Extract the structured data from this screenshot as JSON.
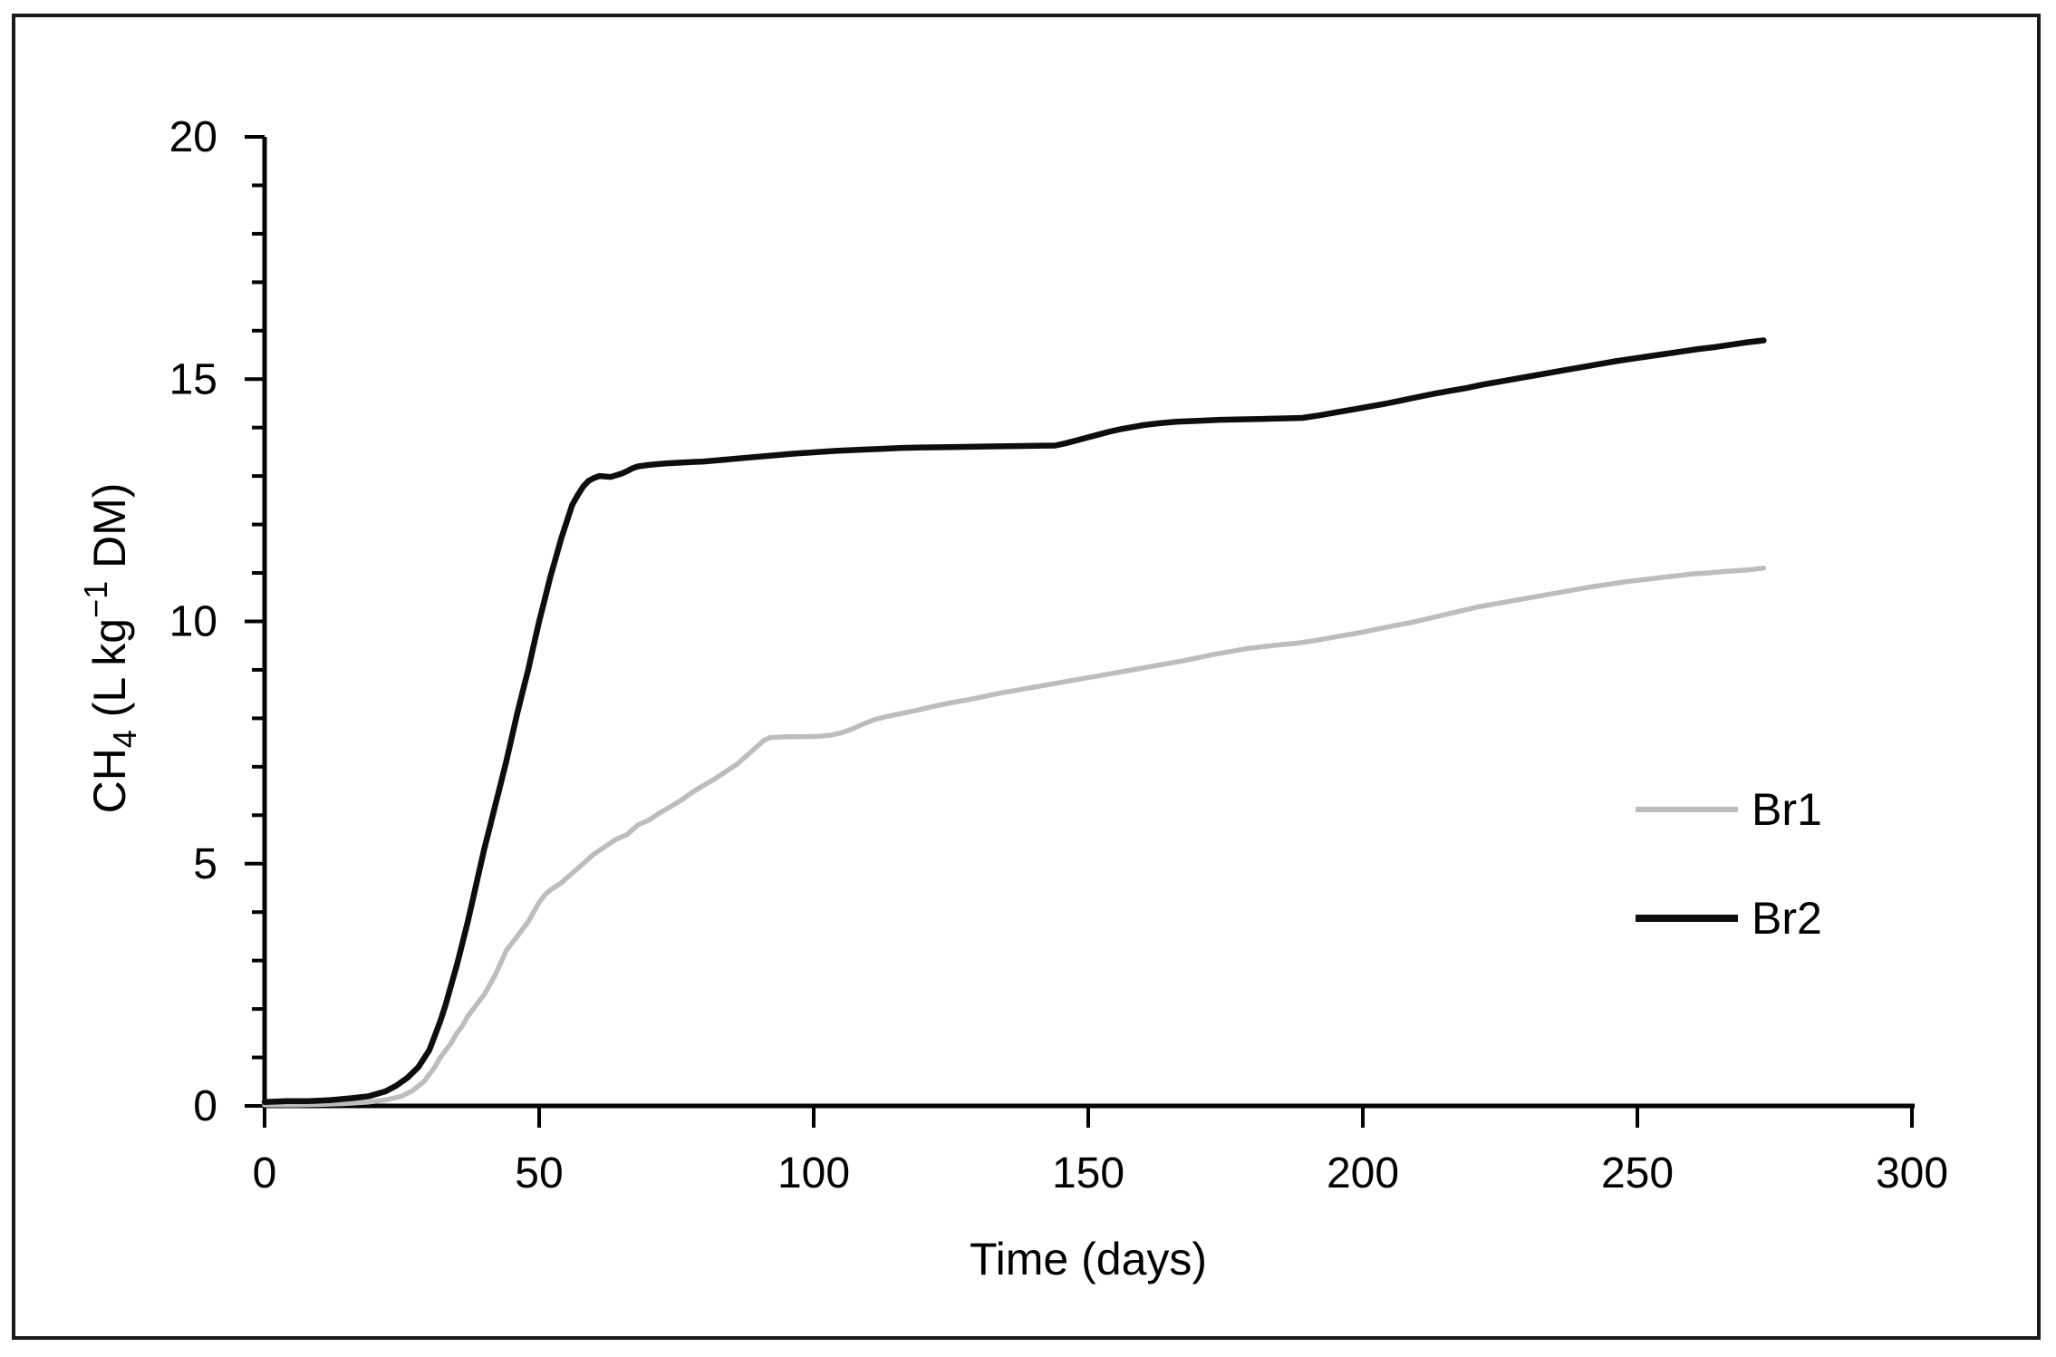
{
  "chart_data": {
    "type": "line",
    "title": "",
    "xlabel": "Time (days)",
    "ylabel": "CH4 (L kg-1 DM)",
    "ylabel_parts": {
      "base": "CH",
      "sub": "4",
      "mid": " (L kg",
      "sup": "−1",
      "end": " DM)"
    },
    "xlim": [
      0,
      300
    ],
    "ylim": [
      0,
      20
    ],
    "x_tick_labels": [
      "0",
      "50",
      "100",
      "150",
      "200",
      "250",
      "300"
    ],
    "y_tick_labels": [
      "0",
      "5",
      "10",
      "15",
      "20"
    ],
    "y_minor_tick_step": 1,
    "grid": "off",
    "legend_position": "right-middle",
    "colors": {
      "background": "#ffffff",
      "border": "#1a1a1a",
      "axis": "#000000"
    },
    "series": [
      {
        "name": "Br1",
        "color": "#bdbdbd",
        "stroke_width": 5.5,
        "points": [
          [
            0,
            0.02
          ],
          [
            5,
            0.02
          ],
          [
            10,
            0.03
          ],
          [
            15,
            0.05
          ],
          [
            19,
            0.08
          ],
          [
            22,
            0.12
          ],
          [
            25,
            0.2
          ],
          [
            27,
            0.32
          ],
          [
            29,
            0.5
          ],
          [
            31,
            0.8
          ],
          [
            32,
            1.0
          ],
          [
            33,
            1.15
          ],
          [
            34,
            1.3
          ],
          [
            35,
            1.5
          ],
          [
            36,
            1.65
          ],
          [
            37,
            1.85
          ],
          [
            38,
            2.0
          ],
          [
            39,
            2.15
          ],
          [
            40,
            2.3
          ],
          [
            41,
            2.5
          ],
          [
            42,
            2.7
          ],
          [
            43,
            2.95
          ],
          [
            44,
            3.2
          ],
          [
            45,
            3.35
          ],
          [
            46,
            3.5
          ],
          [
            47,
            3.65
          ],
          [
            48,
            3.8
          ],
          [
            49,
            4.0
          ],
          [
            50,
            4.2
          ],
          [
            51,
            4.35
          ],
          [
            52,
            4.45
          ],
          [
            54,
            4.6
          ],
          [
            56,
            4.8
          ],
          [
            58,
            5.0
          ],
          [
            60,
            5.2
          ],
          [
            62,
            5.35
          ],
          [
            64,
            5.5
          ],
          [
            66,
            5.6
          ],
          [
            68,
            5.8
          ],
          [
            70,
            5.9
          ],
          [
            72,
            6.05
          ],
          [
            74,
            6.18
          ],
          [
            76,
            6.32
          ],
          [
            78,
            6.48
          ],
          [
            80,
            6.62
          ],
          [
            82,
            6.75
          ],
          [
            84,
            6.9
          ],
          [
            86,
            7.05
          ],
          [
            88,
            7.25
          ],
          [
            90,
            7.45
          ],
          [
            91,
            7.55
          ],
          [
            92,
            7.6
          ],
          [
            95,
            7.62
          ],
          [
            98,
            7.62
          ],
          [
            101,
            7.63
          ],
          [
            103,
            7.65
          ],
          [
            105,
            7.7
          ],
          [
            107,
            7.78
          ],
          [
            109,
            7.88
          ],
          [
            111,
            7.97
          ],
          [
            113,
            8.03
          ],
          [
            116,
            8.1
          ],
          [
            119,
            8.17
          ],
          [
            122,
            8.25
          ],
          [
            125,
            8.32
          ],
          [
            128,
            8.38
          ],
          [
            131,
            8.45
          ],
          [
            134,
            8.52
          ],
          [
            137,
            8.58
          ],
          [
            140,
            8.64
          ],
          [
            143,
            8.7
          ],
          [
            146,
            8.76
          ],
          [
            149,
            8.82
          ],
          [
            152,
            8.88
          ],
          [
            155,
            8.94
          ],
          [
            158,
            9.0
          ],
          [
            161,
            9.06
          ],
          [
            164,
            9.12
          ],
          [
            167,
            9.18
          ],
          [
            170,
            9.25
          ],
          [
            173,
            9.32
          ],
          [
            176,
            9.38
          ],
          [
            179,
            9.44
          ],
          [
            182,
            9.48
          ],
          [
            185,
            9.52
          ],
          [
            188,
            9.55
          ],
          [
            191,
            9.6
          ],
          [
            194,
            9.66
          ],
          [
            197,
            9.72
          ],
          [
            200,
            9.78
          ],
          [
            203,
            9.85
          ],
          [
            206,
            9.92
          ],
          [
            209,
            9.98
          ],
          [
            212,
            10.06
          ],
          [
            215,
            10.14
          ],
          [
            218,
            10.22
          ],
          [
            221,
            10.3
          ],
          [
            224,
            10.36
          ],
          [
            227,
            10.42
          ],
          [
            230,
            10.48
          ],
          [
            233,
            10.54
          ],
          [
            236,
            10.6
          ],
          [
            239,
            10.66
          ],
          [
            242,
            10.72
          ],
          [
            245,
            10.77
          ],
          [
            248,
            10.82
          ],
          [
            251,
            10.86
          ],
          [
            254,
            10.9
          ],
          [
            257,
            10.94
          ],
          [
            260,
            10.98
          ],
          [
            263,
            11.0
          ],
          [
            266,
            11.03
          ],
          [
            270,
            11.06
          ],
          [
            273,
            11.1
          ]
        ]
      },
      {
        "name": "Br2",
        "color": "#0d0d0d",
        "stroke_width": 6.5,
        "points": [
          [
            0,
            0.08
          ],
          [
            4,
            0.1
          ],
          [
            8,
            0.1
          ],
          [
            12,
            0.12
          ],
          [
            16,
            0.16
          ],
          [
            19,
            0.2
          ],
          [
            22,
            0.3
          ],
          [
            24,
            0.42
          ],
          [
            26,
            0.58
          ],
          [
            28,
            0.8
          ],
          [
            30,
            1.15
          ],
          [
            31,
            1.45
          ],
          [
            32,
            1.75
          ],
          [
            33,
            2.1
          ],
          [
            34,
            2.5
          ],
          [
            35,
            2.9
          ],
          [
            36,
            3.35
          ],
          [
            37,
            3.8
          ],
          [
            38,
            4.3
          ],
          [
            39,
            4.8
          ],
          [
            40,
            5.3
          ],
          [
            41,
            5.75
          ],
          [
            42,
            6.2
          ],
          [
            43,
            6.65
          ],
          [
            44,
            7.1
          ],
          [
            45,
            7.6
          ],
          [
            46,
            8.1
          ],
          [
            47,
            8.55
          ],
          [
            48,
            9.0
          ],
          [
            49,
            9.5
          ],
          [
            50,
            10.0
          ],
          [
            51,
            10.45
          ],
          [
            52,
            10.9
          ],
          [
            53,
            11.3
          ],
          [
            54,
            11.7
          ],
          [
            55,
            12.05
          ],
          [
            56,
            12.4
          ],
          [
            57,
            12.6
          ],
          [
            58,
            12.78
          ],
          [
            59,
            12.9
          ],
          [
            60,
            12.96
          ],
          [
            61,
            13.0
          ],
          [
            63,
            12.98
          ],
          [
            65,
            13.05
          ],
          [
            66,
            13.1
          ],
          [
            67,
            13.16
          ],
          [
            68,
            13.2
          ],
          [
            70,
            13.23
          ],
          [
            73,
            13.26
          ],
          [
            76,
            13.28
          ],
          [
            80,
            13.3
          ],
          [
            84,
            13.34
          ],
          [
            88,
            13.38
          ],
          [
            92,
            13.42
          ],
          [
            96,
            13.46
          ],
          [
            100,
            13.49
          ],
          [
            104,
            13.52
          ],
          [
            108,
            13.54
          ],
          [
            112,
            13.56
          ],
          [
            116,
            13.58
          ],
          [
            120,
            13.59
          ],
          [
            126,
            13.6
          ],
          [
            132,
            13.61
          ],
          [
            138,
            13.62
          ],
          [
            144,
            13.63
          ],
          [
            146,
            13.68
          ],
          [
            148,
            13.74
          ],
          [
            150,
            13.8
          ],
          [
            152,
            13.86
          ],
          [
            154,
            13.92
          ],
          [
            156,
            13.97
          ],
          [
            158,
            14.01
          ],
          [
            160,
            14.05
          ],
          [
            163,
            14.09
          ],
          [
            166,
            14.12
          ],
          [
            170,
            14.14
          ],
          [
            174,
            14.16
          ],
          [
            178,
            14.17
          ],
          [
            182,
            14.18
          ],
          [
            186,
            14.19
          ],
          [
            189,
            14.2
          ],
          [
            192,
            14.25
          ],
          [
            195,
            14.31
          ],
          [
            198,
            14.37
          ],
          [
            201,
            14.43
          ],
          [
            204,
            14.49
          ],
          [
            207,
            14.56
          ],
          [
            210,
            14.63
          ],
          [
            213,
            14.7
          ],
          [
            216,
            14.76
          ],
          [
            219,
            14.82
          ],
          [
            222,
            14.89
          ],
          [
            225,
            14.95
          ],
          [
            228,
            15.01
          ],
          [
            231,
            15.07
          ],
          [
            234,
            15.13
          ],
          [
            237,
            15.19
          ],
          [
            240,
            15.25
          ],
          [
            243,
            15.31
          ],
          [
            246,
            15.37
          ],
          [
            249,
            15.42
          ],
          [
            252,
            15.47
          ],
          [
            255,
            15.52
          ],
          [
            258,
            15.57
          ],
          [
            261,
            15.62
          ],
          [
            264,
            15.66
          ],
          [
            267,
            15.71
          ],
          [
            270,
            15.76
          ],
          [
            273,
            15.8
          ]
        ]
      }
    ]
  }
}
